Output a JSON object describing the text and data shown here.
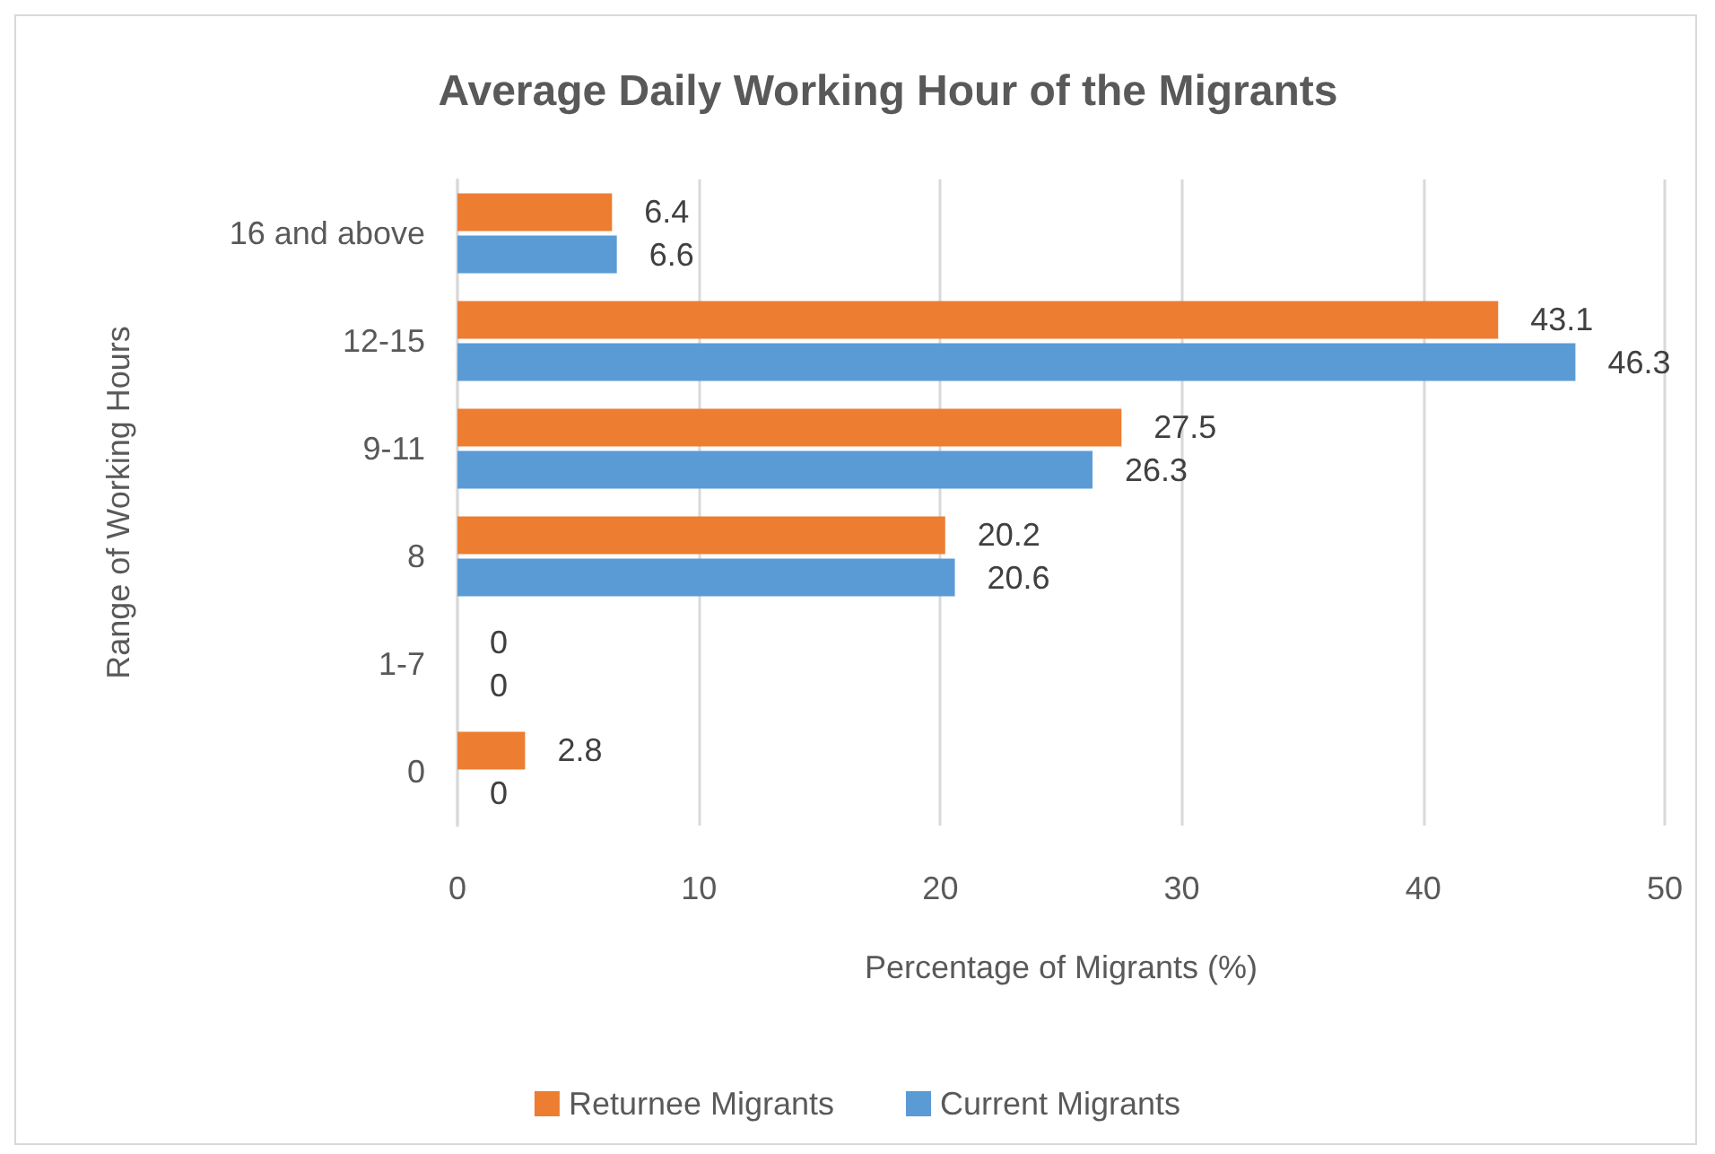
{
  "chart_data": {
    "type": "bar",
    "orientation": "horizontal",
    "title": "Average Daily Working Hour of the Migrants",
    "xlabel": "Percentage of Migrants (%)",
    "ylabel": "Range of Working Hours",
    "categories": [
      "16 and above",
      "12-15",
      "9-11",
      "8",
      "1-7",
      "0"
    ],
    "series": [
      {
        "name": "Returnee Migrants",
        "color": "#ed7d31",
        "values": [
          6.4,
          43.1,
          27.5,
          20.2,
          0,
          2.8
        ]
      },
      {
        "name": "Current Migrants",
        "color": "#5b9bd5",
        "values": [
          6.6,
          46.3,
          26.3,
          20.6,
          0,
          0
        ]
      }
    ],
    "xlim": [
      0,
      50
    ],
    "xticks": [
      0,
      10,
      20,
      30,
      40,
      50
    ],
    "grid": "x",
    "legend": "bottom",
    "data_labels": true
  }
}
